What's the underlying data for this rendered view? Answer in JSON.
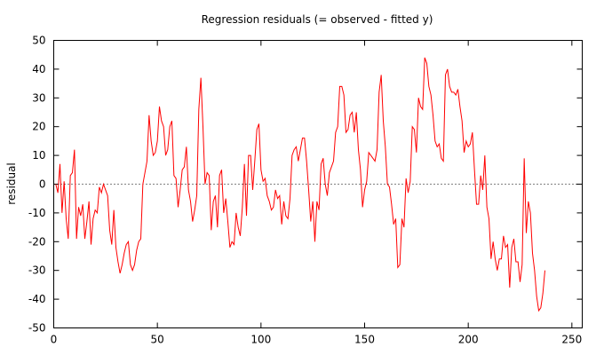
{
  "chart_data": {
    "type": "line",
    "title": "Regression residuals (= observed - fitted y)",
    "xlabel": "",
    "ylabel": "residual",
    "xlim": [
      0,
      255
    ],
    "ylim": [
      -50,
      50
    ],
    "xticks": [
      0,
      50,
      100,
      150,
      200,
      250
    ],
    "yticks": [
      -50,
      -40,
      -30,
      -20,
      -10,
      0,
      10,
      20,
      30,
      40,
      50
    ],
    "zero_line": {
      "value": 0,
      "style": "dotted"
    },
    "grid": false,
    "colors": {
      "series": "#ff0000",
      "axes": "#000000",
      "zero_line": "#000000"
    },
    "series": [
      {
        "x_start": 1,
        "x_step": 1,
        "values": [
          0,
          -3,
          7,
          -10,
          1,
          -12,
          -19,
          3,
          4,
          12,
          -19,
          -8,
          -11,
          -7,
          -19,
          -13,
          -6,
          -21,
          -12,
          -9,
          -10,
          -1,
          -3,
          0,
          -2,
          -4,
          -16,
          -21,
          -9,
          -22,
          -27,
          -31,
          -28,
          -24,
          -21,
          -20,
          -28,
          -30,
          -28,
          -23,
          -20,
          -19,
          0,
          4,
          8,
          24,
          15,
          10,
          11,
          15,
          27,
          22,
          20,
          10,
          12,
          20,
          22,
          3,
          2,
          -8,
          -2,
          5,
          6,
          13,
          -2,
          -6,
          -13,
          -9,
          -4,
          26,
          37,
          20,
          0,
          4,
          3,
          -16,
          -6,
          -4,
          -15,
          3,
          5,
          -10,
          -5,
          -13,
          -22,
          -20,
          -21,
          -10,
          -15,
          -18,
          -8,
          7,
          -11,
          10,
          10,
          -2,
          8,
          19,
          21,
          5,
          1,
          2,
          -4,
          -6,
          -9,
          -8,
          -2,
          -5,
          -4,
          -14,
          -6,
          -11,
          -12,
          -5,
          10,
          12,
          13,
          8,
          12,
          16,
          16,
          8,
          -2,
          -13,
          -6,
          -20,
          -6,
          -9,
          7,
          9,
          0,
          -4,
          4,
          6,
          8,
          18,
          20,
          34,
          34,
          31,
          18,
          19,
          24,
          25,
          18,
          25,
          12,
          5,
          -8,
          -2,
          1,
          11,
          10,
          9,
          8,
          12,
          32,
          38,
          22,
          13,
          0,
          -1,
          -7,
          -14,
          -12,
          -29,
          -28,
          -12,
          -15,
          2,
          -3,
          1,
          20,
          19,
          11,
          30,
          27,
          26,
          44,
          42,
          34,
          31,
          24,
          15,
          13,
          14,
          9,
          8,
          38,
          40,
          34,
          32,
          32,
          31,
          33,
          27,
          22,
          11,
          15,
          13,
          14,
          18,
          5,
          -7,
          -7,
          3,
          -2,
          10,
          -8,
          -12,
          -26,
          -20,
          -26,
          -30,
          -26,
          -26,
          -18,
          -22,
          -21,
          -36,
          -22,
          -19,
          -27,
          -27,
          -34,
          -28,
          9,
          -17,
          -6,
          -10,
          -24,
          -30,
          -39,
          -44,
          -43,
          -38,
          -30
        ]
      }
    ]
  }
}
